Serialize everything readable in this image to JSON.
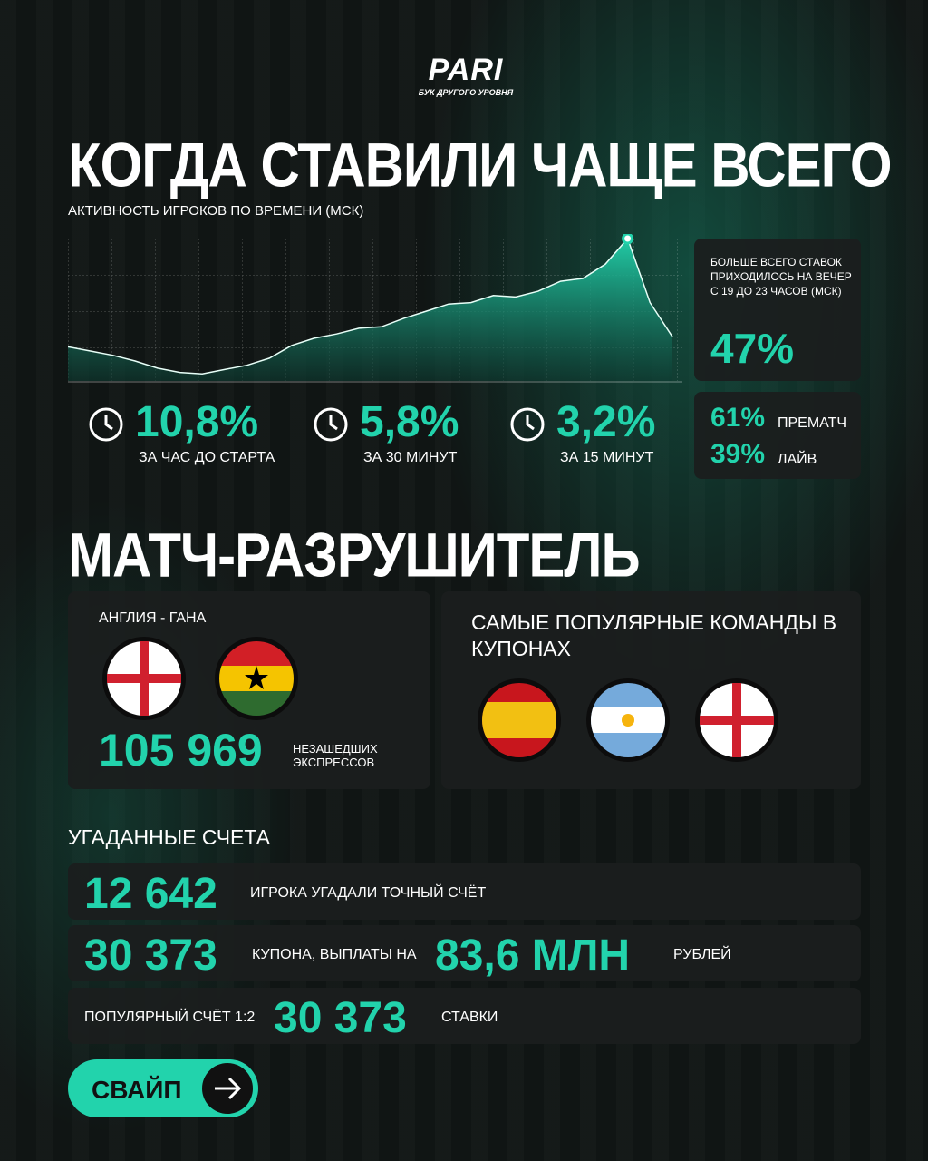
{
  "logo": {
    "brand": "PARI",
    "tagline": "БУК ДРУГОГО УРОВНЯ"
  },
  "section1": {
    "title": "КОГДА СТАВИЛИ ЧАЩЕ ВСЕГО",
    "subtitle": "АКТИВНОСТЬ ИГРОКОВ ПО ВРЕМЕНИ (МСК)"
  },
  "chart_data": {
    "type": "area",
    "color": "#22d3ac",
    "ylim": [
      0,
      100
    ],
    "values": [
      24,
      21,
      18,
      14,
      9,
      6,
      5,
      8,
      11,
      16,
      25,
      30,
      33,
      37,
      38,
      44,
      49,
      54,
      55,
      60,
      59,
      63,
      70,
      72,
      82,
      100,
      55,
      31
    ]
  },
  "timing_stats": [
    {
      "value": "10,8%",
      "label": "ЗА ЧАС ДО СТАРТА"
    },
    {
      "value": "5,8%",
      "label": "ЗА 30 МИНУТ"
    },
    {
      "value": "3,2%",
      "label": "ЗА 15 МИНУТ"
    }
  ],
  "peak_card": {
    "text": "БОЛЬШЕ ВСЕГО СТАВОК ПРИХОДИЛОСЬ НА ВЕЧЕР С 19 ДО 23 ЧАСОВ (МСК)",
    "value": "47%"
  },
  "split": [
    {
      "value": "61%",
      "label": "ПРЕМАТЧ"
    },
    {
      "value": "39%",
      "label": "ЛАЙВ"
    }
  ],
  "section2": {
    "title": "МАТЧ-РАЗРУШИТЕЛЬ",
    "match": "АНГЛИЯ - ГАНА",
    "value": "105 969",
    "label": "НЕЗАШЕДШИХ ЭКСПРЕССОВ",
    "teams_title": "САМЫЕ ПОПУЛЯРНЫЕ КОМАНДЫ В КУПОНАХ"
  },
  "section3": {
    "title": "УГАДАННЫЕ СЧЕТА",
    "rows": [
      {
        "value": "12 642",
        "label": "ИГРОКА УГАДАЛИ ТОЧНЫЙ СЧЁТ"
      },
      {
        "value": "30 373",
        "label": "КУПОНА, ВЫПЛАТЫ НА",
        "payout": "83,6 МЛН",
        "payout_label": "РУБЛЕЙ"
      },
      {
        "label": "ПОПУЛЯРНЫЙ СЧЁТ 1:2",
        "value": "30 373",
        "suffix": "СТАВКИ"
      }
    ]
  },
  "swipe": "СВАЙП"
}
